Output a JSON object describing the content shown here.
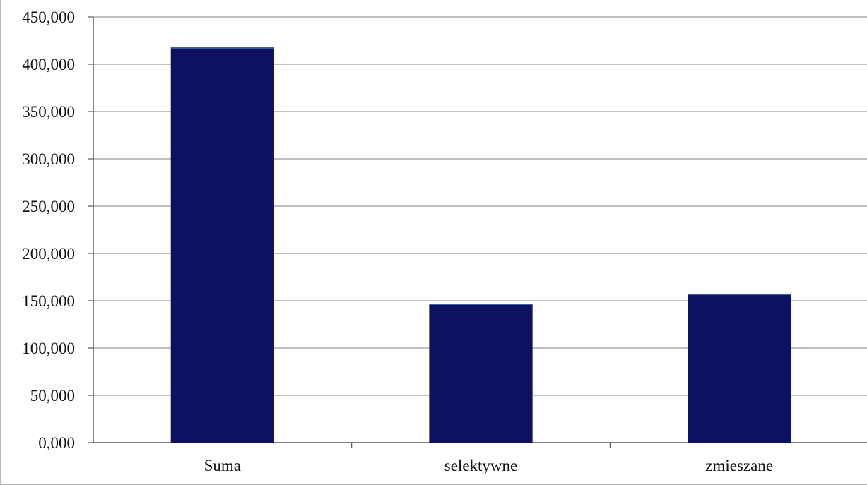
{
  "chart_data": {
    "type": "bar",
    "categories": [
      "Suma",
      "selektywne",
      "zmieszane"
    ],
    "values": [
      418000,
      147000,
      157500
    ],
    "ylim": [
      0,
      450000
    ],
    "yticks": [
      0,
      50000,
      100000,
      150000,
      200000,
      250000,
      300000,
      350000,
      400000,
      450000
    ],
    "ytick_labels": [
      "0,000",
      "50,000",
      "100,000",
      "150,000",
      "200,000",
      "250,000",
      "300,000",
      "350,000",
      "400,000",
      "450,000"
    ],
    "title": "",
    "xlabel": "",
    "ylabel": "",
    "grid": true,
    "legend": "none",
    "colors": {
      "bar": "#0d1160",
      "bar_top": "#3a5fb0",
      "grid": "#9a9a9a",
      "axis": "#555555"
    }
  }
}
